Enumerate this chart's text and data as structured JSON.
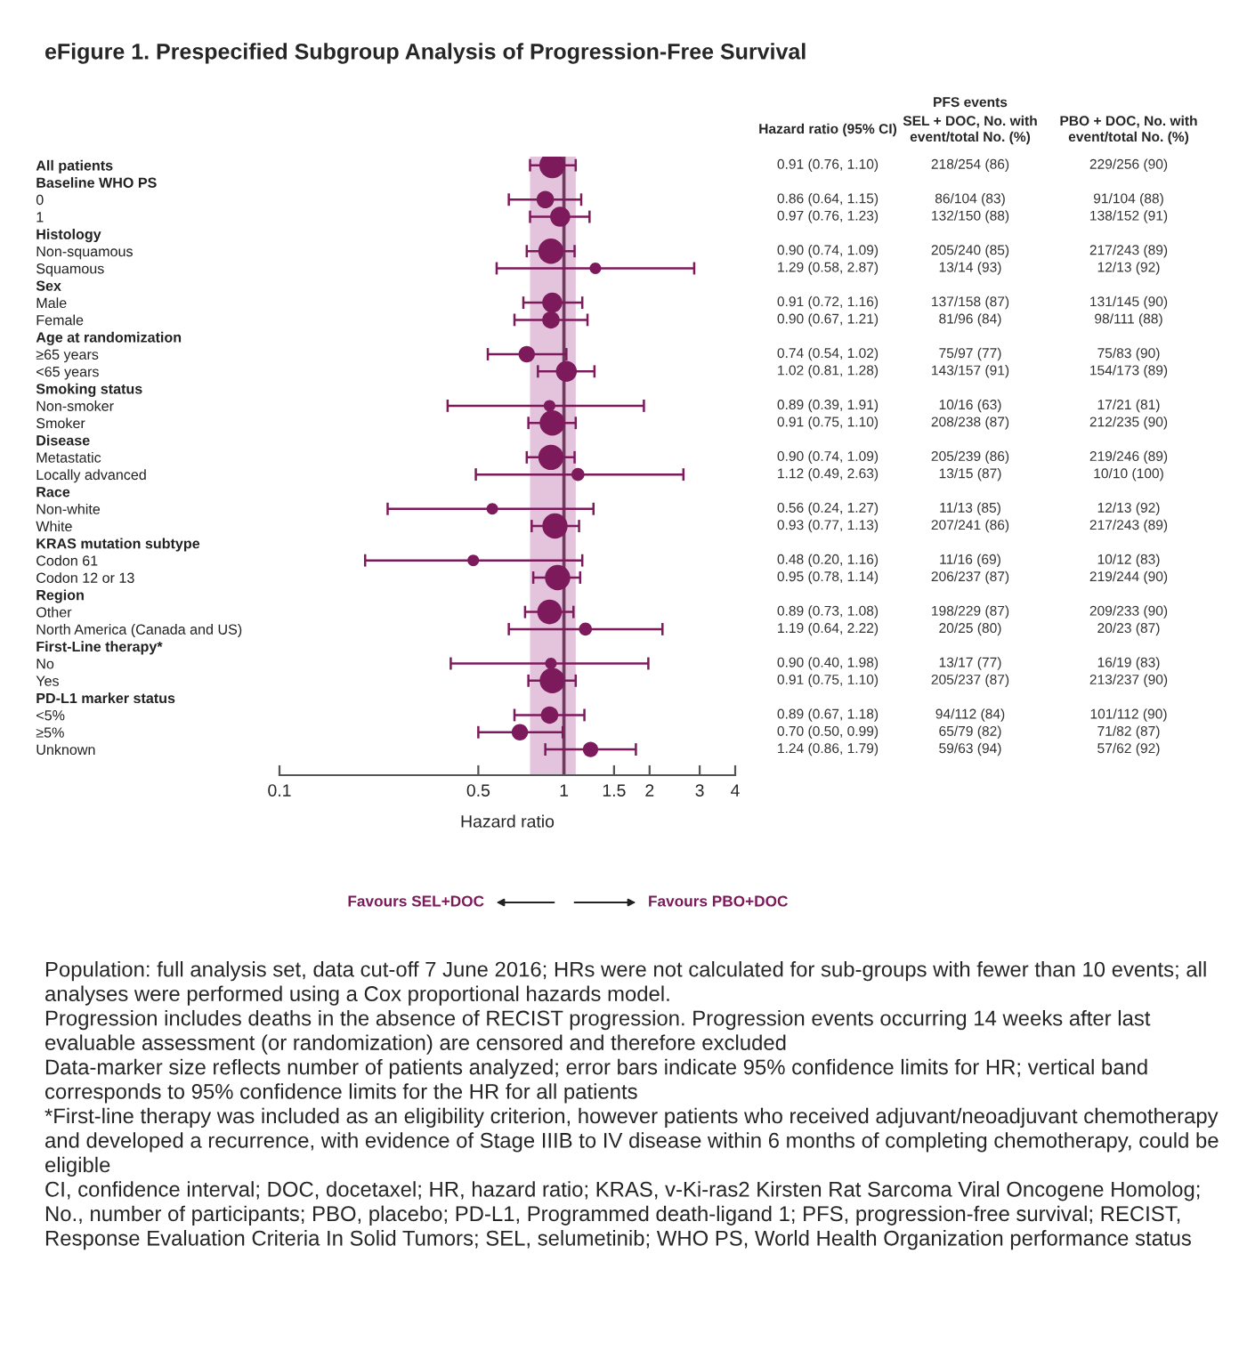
{
  "chart_data": {
    "type": "bubble",
    "orientation": "horizontal",
    "log": "x",
    "title": "eFigure 1. Prespecified Subgroup Analysis of Progression-Free Survival",
    "xlabel": "Hazard ratio",
    "categories": [
      "All patients",
      "Baseline WHO PS",
      "0",
      "1",
      "Histology",
      "Non-squamous",
      "Squamous",
      "Sex",
      "Male",
      "Female",
      "Age at randomization",
      "≥65 years",
      "<65 years",
      "Smoking status",
      "Non-smoker",
      "Smoker",
      "Disease",
      "Metastatic",
      "Locally advanced",
      "Race",
      "Non-white",
      "White",
      "KRAS mutation subtype",
      "Codon 61",
      "Codon 12 or 13",
      "Region",
      "Other",
      "North America (Canada and US)",
      "First-Line therapy*",
      "No",
      "Yes",
      "PD-L1 marker status",
      "<5%",
      "≥5%",
      "Unknown"
    ],
    "color": "#7d1a5c",
    "values": [
      0.91,
      null,
      0.86,
      0.97,
      null,
      0.9,
      1.29,
      null,
      0.91,
      0.9,
      null,
      0.74,
      1.02,
      null,
      0.89,
      0.91,
      null,
      0.9,
      1.12,
      null,
      0.56,
      0.93,
      null,
      0.48,
      0.95,
      null,
      0.89,
      1.19,
      null,
      0.9,
      0.91,
      null,
      0.89,
      0.7,
      1.24
    ],
    "errors": [
      [
        0.76,
        1.1
      ],
      null,
      [
        0.64,
        1.15
      ],
      [
        0.76,
        1.23
      ],
      null,
      [
        0.74,
        1.09
      ],
      [
        0.58,
        2.87
      ],
      null,
      [
        0.72,
        1.16
      ],
      [
        0.67,
        1.21
      ],
      null,
      [
        0.54,
        1.02
      ],
      [
        0.81,
        1.28
      ],
      null,
      [
        0.39,
        1.91
      ],
      [
        0.75,
        1.1
      ],
      null,
      [
        0.74,
        1.09
      ],
      [
        0.49,
        2.63
      ],
      null,
      [
        0.24,
        1.27
      ],
      [
        0.77,
        1.13
      ],
      null,
      [
        0.2,
        1.16
      ],
      [
        0.78,
        1.14
      ],
      null,
      [
        0.73,
        1.08
      ],
      [
        0.64,
        2.22
      ],
      null,
      [
        0.4,
        1.98
      ],
      [
        0.75,
        1.1
      ],
      null,
      [
        0.67,
        1.18
      ],
      [
        0.5,
        0.99
      ],
      [
        0.86,
        1.79
      ]
    ],
    "sizes": [
      1,
      null,
      0.45,
      0.6,
      null,
      0.95,
      0.2,
      null,
      0.6,
      0.45,
      null,
      0.4,
      0.65,
      null,
      0.2,
      0.95,
      null,
      0.95,
      0.25,
      null,
      0.2,
      0.95,
      null,
      0.2,
      0.95,
      null,
      0.9,
      0.25,
      null,
      0.2,
      0.95,
      null,
      0.45,
      0.4,
      0.35
    ],
    "value_labels": [
      "0.91 (0.76, 1.10)",
      null,
      "0.86 (0.64, 1.15)",
      "0.97 (0.76, 1.23)",
      null,
      "0.90 (0.74, 1.09)",
      "1.29 (0.58, 2.87)",
      null,
      "0.91 (0.72, 1.16)",
      "0.90 (0.67, 1.21)",
      null,
      "0.74 (0.54, 1.02)",
      "1.02 (0.81, 1.28)",
      null,
      "0.89 (0.39, 1.91)",
      "0.91 (0.75, 1.10)",
      null,
      "0.90 (0.74, 1.09)",
      "1.12 (0.49, 2.63)",
      null,
      "0.56 (0.24, 1.27)",
      "0.93 (0.77, 1.13)",
      null,
      "0.48 (0.20, 1.16)",
      "0.95 (0.78, 1.14)",
      null,
      "0.89 (0.73, 1.08)",
      "1.19 (0.64, 2.22)",
      null,
      "0.90 (0.40, 1.98)",
      "0.91 (0.75, 1.10)",
      null,
      "0.89 (0.67, 1.18)",
      "0.70 (0.50, 0.99)",
      "1.24 (0.86, 1.79)"
    ],
    "xlim": [
      0.1,
      4
    ],
    "xticks": [
      0.1,
      0.5,
      1,
      1.5,
      2,
      3,
      4
    ],
    "ref_lines": [
      {
        "axis": "x",
        "value": 1,
        "color": "#6e3a5e"
      }
    ],
    "bands": [
      {
        "axis": "x",
        "from": 0.76,
        "to": 1.1,
        "color": "#e4c3dc"
      }
    ],
    "annotations": [
      "Hazard ratio (95% CI)",
      "PFS events",
      "SEL + DOC, No. with\nevent/total No. (%)",
      "PBO + DOC, No. with\nevent/total No. (%)",
      "Favours SEL+DOC",
      "Favours PBO+DOC",
      "Population: full analysis set, data cut-off 7 June 2016; HRs were not calculated for sub-groups with fewer than 10 events; all analyses were performed using a Cox proportional hazards model.",
      "Progression includes deaths in the absence of RECIST progression. Progression events occurring 14 weeks after last evaluable assessment (or randomization) are censored and therefore excluded",
      "Data-marker size reflects number of patients analyzed; error bars indicate 95% confidence limits for HR; vertical band corresponds to 95% confidence limits for the HR for all patients",
      "*First-line therapy was included as an eligibility criterion, however patients who received adjuvant/neoadjuvant chemotherapy and developed a recurrence, with evidence of Stage IIIB to IV disease within 6 months of completing chemotherapy, could be eligible",
      "CI, confidence interval; DOC, docetaxel; HR, hazard ratio; KRAS, v-Ki-ras2 Kirsten Rat Sarcoma Viral Oncogene Homolog; No., number of participants; PBO, placebo; PD-L1, Programmed death-ligand 1; PFS, progression-free survival; RECIST, Response Evaluation Criteria In Solid Tumors; SEL, selumetinib; WHO PS, World Health Organization performance status",
      "218/254 (86)",
      "229/256 (90)",
      "86/104 (83)",
      "91/104 (88)",
      "132/150 (88)",
      "138/152 (91)",
      "205/240 (85)",
      "217/243 (89)",
      "13/14 (93)",
      "12/13 (92)",
      "137/158 (87)",
      "131/145 (90)",
      "81/96 (84)",
      "98/111 (88)",
      "75/97 (77)",
      "75/83 (90)",
      "143/157 (91)",
      "154/173 (89)",
      "10/16 (63)",
      "17/21 (81)",
      "208/238 (87)",
      "212/235 (90)",
      "205/239 (86)",
      "219/246 (89)",
      "13/15 (87)",
      "10/10 (100)",
      "11/13 (85)",
      "12/13 (92)",
      "207/241 (86)",
      "217/243 (89)",
      "11/16 (69)",
      "10/12 (83)",
      "206/237 (87)",
      "219/244 (90)",
      "198/229 (87)",
      "209/233 (90)",
      "20/25 (80)",
      "20/23 (87)",
      "13/17 (77)",
      "16/19 (83)",
      "205/237 (87)",
      "213/237 (90)",
      "94/112 (84)",
      "101/112 (90)",
      "65/79 (82)",
      "71/82 (87)",
      "59/63 (94)",
      "57/62 (92)"
    ]
  }
}
